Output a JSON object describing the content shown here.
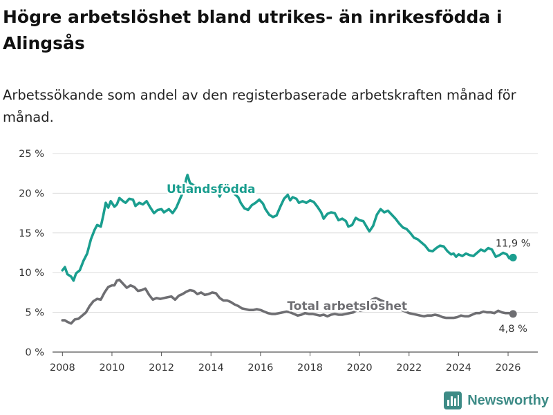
{
  "title": "Högre arbetslöshet bland utrikes- än inrikesfödda i Alingsås",
  "subtitle": "Arbetssökande som andel av den registerbaserade arbetskraften månad för månad.",
  "brand": {
    "name": "Newsworthy",
    "icon": "bar-chart-logo-icon",
    "color": "#3d8b86"
  },
  "chart_data": {
    "type": "line",
    "title": "Högre arbetslöshet bland utrikes- än inrikesfödda i Alingsås",
    "xlabel": "",
    "ylabel": "",
    "xlim": [
      2007.6,
      2027.2
    ],
    "ylim": [
      0,
      25
    ],
    "x_ticks": [
      2008,
      2010,
      2012,
      2014,
      2016,
      2018,
      2020,
      2022,
      2024,
      2026
    ],
    "x_tick_labels": [
      "2008",
      "2010",
      "2012",
      "2014",
      "2016",
      "2018",
      "2020",
      "2022",
      "2024",
      "2026"
    ],
    "y_ticks": [
      0,
      5,
      10,
      15,
      20,
      25
    ],
    "y_tick_labels": [
      "0 %",
      "5 %",
      "10 %",
      "15 %",
      "20 %",
      "25 %"
    ],
    "grid": true,
    "series": [
      {
        "name": "Utlandsfödda",
        "label": "Utlandsfödda",
        "color": "#1a9e8f",
        "end_label": "11,9 %",
        "points": [
          [
            2008.0,
            10.3
          ],
          [
            2008.1,
            10.7
          ],
          [
            2008.2,
            9.8
          ],
          [
            2008.35,
            9.5
          ],
          [
            2008.45,
            9.0
          ],
          [
            2008.55,
            9.9
          ],
          [
            2008.7,
            10.3
          ],
          [
            2008.85,
            11.5
          ],
          [
            2009.0,
            12.4
          ],
          [
            2009.15,
            14.2
          ],
          [
            2009.3,
            15.4
          ],
          [
            2009.4,
            16.0
          ],
          [
            2009.55,
            15.8
          ],
          [
            2009.65,
            17.2
          ],
          [
            2009.75,
            18.8
          ],
          [
            2009.85,
            18.2
          ],
          [
            2009.95,
            19.0
          ],
          [
            2010.1,
            18.3
          ],
          [
            2010.2,
            18.6
          ],
          [
            2010.3,
            19.4
          ],
          [
            2010.45,
            19.0
          ],
          [
            2010.55,
            18.8
          ],
          [
            2010.7,
            19.3
          ],
          [
            2010.85,
            19.2
          ],
          [
            2010.95,
            18.4
          ],
          [
            2011.1,
            18.8
          ],
          [
            2011.25,
            18.6
          ],
          [
            2011.4,
            19.0
          ],
          [
            2011.55,
            18.2
          ],
          [
            2011.7,
            17.5
          ],
          [
            2011.85,
            17.9
          ],
          [
            2012.0,
            18.0
          ],
          [
            2012.1,
            17.6
          ],
          [
            2012.3,
            18.0
          ],
          [
            2012.45,
            17.5
          ],
          [
            2012.6,
            18.2
          ],
          [
            2012.75,
            19.3
          ],
          [
            2012.85,
            20.0
          ],
          [
            2012.95,
            21.0
          ],
          [
            2013.0,
            21.8
          ],
          [
            2013.05,
            22.3
          ],
          [
            2013.15,
            21.3
          ],
          [
            2013.3,
            21.0
          ],
          [
            2013.5,
            20.8
          ],
          [
            2013.7,
            20.5
          ],
          [
            2013.9,
            20.3
          ],
          [
            2014.1,
            20.2
          ],
          [
            2014.25,
            20.5
          ],
          [
            2014.35,
            19.6
          ],
          [
            2014.5,
            20.6
          ],
          [
            2014.65,
            20.8
          ],
          [
            2014.8,
            20.3
          ],
          [
            2014.95,
            19.9
          ],
          [
            2015.1,
            19.5
          ],
          [
            2015.2,
            18.8
          ],
          [
            2015.35,
            18.1
          ],
          [
            2015.5,
            17.9
          ],
          [
            2015.65,
            18.5
          ],
          [
            2015.8,
            18.8
          ],
          [
            2015.95,
            19.2
          ],
          [
            2016.1,
            18.7
          ],
          [
            2016.2,
            18.0
          ],
          [
            2016.35,
            17.3
          ],
          [
            2016.5,
            17.0
          ],
          [
            2016.65,
            17.2
          ],
          [
            2016.8,
            18.3
          ],
          [
            2016.95,
            19.3
          ],
          [
            2017.1,
            19.8
          ],
          [
            2017.2,
            19.1
          ],
          [
            2017.3,
            19.5
          ],
          [
            2017.45,
            19.3
          ],
          [
            2017.55,
            18.8
          ],
          [
            2017.7,
            19.0
          ],
          [
            2017.85,
            18.8
          ],
          [
            2018.0,
            19.1
          ],
          [
            2018.15,
            18.9
          ],
          [
            2018.3,
            18.3
          ],
          [
            2018.45,
            17.6
          ],
          [
            2018.55,
            16.8
          ],
          [
            2018.7,
            17.4
          ],
          [
            2018.85,
            17.6
          ],
          [
            2019.0,
            17.5
          ],
          [
            2019.15,
            16.6
          ],
          [
            2019.3,
            16.8
          ],
          [
            2019.45,
            16.5
          ],
          [
            2019.55,
            15.8
          ],
          [
            2019.7,
            16.0
          ],
          [
            2019.85,
            16.9
          ],
          [
            2020.0,
            16.6
          ],
          [
            2020.15,
            16.5
          ],
          [
            2020.3,
            15.7
          ],
          [
            2020.4,
            15.2
          ],
          [
            2020.55,
            15.9
          ],
          [
            2020.7,
            17.3
          ],
          [
            2020.85,
            18.0
          ],
          [
            2021.0,
            17.6
          ],
          [
            2021.15,
            17.8
          ],
          [
            2021.3,
            17.3
          ],
          [
            2021.45,
            16.8
          ],
          [
            2021.6,
            16.2
          ],
          [
            2021.75,
            15.7
          ],
          [
            2021.9,
            15.5
          ],
          [
            2022.05,
            15.0
          ],
          [
            2022.2,
            14.4
          ],
          [
            2022.35,
            14.2
          ],
          [
            2022.5,
            13.8
          ],
          [
            2022.65,
            13.4
          ],
          [
            2022.8,
            12.8
          ],
          [
            2022.95,
            12.7
          ],
          [
            2023.1,
            13.1
          ],
          [
            2023.25,
            13.4
          ],
          [
            2023.4,
            13.3
          ],
          [
            2023.55,
            12.7
          ],
          [
            2023.7,
            12.3
          ],
          [
            2023.8,
            12.4
          ],
          [
            2023.9,
            12.0
          ],
          [
            2024.0,
            12.3
          ],
          [
            2024.15,
            12.1
          ],
          [
            2024.3,
            12.4
          ],
          [
            2024.45,
            12.2
          ],
          [
            2024.6,
            12.1
          ],
          [
            2024.75,
            12.5
          ],
          [
            2024.9,
            12.9
          ],
          [
            2025.05,
            12.7
          ],
          [
            2025.2,
            13.1
          ],
          [
            2025.35,
            12.9
          ],
          [
            2025.5,
            12.0
          ],
          [
            2025.65,
            12.2
          ],
          [
            2025.8,
            12.5
          ],
          [
            2025.95,
            12.3
          ],
          [
            2026.05,
            11.8
          ],
          [
            2026.2,
            11.9
          ]
        ]
      },
      {
        "name": "Total arbetslöshet",
        "label": "Total arbetslöshet",
        "color": "#6e6e72",
        "end_label": "4,8 %",
        "points": [
          [
            2008.0,
            4.0
          ],
          [
            2008.1,
            4.0
          ],
          [
            2008.2,
            3.8
          ],
          [
            2008.35,
            3.6
          ],
          [
            2008.5,
            4.1
          ],
          [
            2008.65,
            4.2
          ],
          [
            2008.8,
            4.6
          ],
          [
            2008.95,
            5.0
          ],
          [
            2009.1,
            5.8
          ],
          [
            2009.25,
            6.4
          ],
          [
            2009.4,
            6.7
          ],
          [
            2009.55,
            6.6
          ],
          [
            2009.7,
            7.5
          ],
          [
            2009.85,
            8.2
          ],
          [
            2010.0,
            8.4
          ],
          [
            2010.1,
            8.4
          ],
          [
            2010.2,
            9.0
          ],
          [
            2010.3,
            9.1
          ],
          [
            2010.45,
            8.6
          ],
          [
            2010.6,
            8.1
          ],
          [
            2010.75,
            8.4
          ],
          [
            2010.9,
            8.2
          ],
          [
            2011.05,
            7.7
          ],
          [
            2011.2,
            7.8
          ],
          [
            2011.35,
            8.0
          ],
          [
            2011.5,
            7.2
          ],
          [
            2011.65,
            6.6
          ],
          [
            2011.8,
            6.8
          ],
          [
            2011.95,
            6.7
          ],
          [
            2012.1,
            6.8
          ],
          [
            2012.25,
            6.9
          ],
          [
            2012.4,
            7.0
          ],
          [
            2012.55,
            6.6
          ],
          [
            2012.7,
            7.1
          ],
          [
            2012.85,
            7.3
          ],
          [
            2013.0,
            7.6
          ],
          [
            2013.15,
            7.8
          ],
          [
            2013.3,
            7.7
          ],
          [
            2013.45,
            7.3
          ],
          [
            2013.6,
            7.5
          ],
          [
            2013.75,
            7.2
          ],
          [
            2013.9,
            7.3
          ],
          [
            2014.05,
            7.5
          ],
          [
            2014.2,
            7.4
          ],
          [
            2014.35,
            6.8
          ],
          [
            2014.5,
            6.5
          ],
          [
            2014.65,
            6.5
          ],
          [
            2014.8,
            6.3
          ],
          [
            2014.95,
            6.0
          ],
          [
            2015.1,
            5.8
          ],
          [
            2015.25,
            5.5
          ],
          [
            2015.4,
            5.4
          ],
          [
            2015.55,
            5.3
          ],
          [
            2015.7,
            5.3
          ],
          [
            2015.85,
            5.4
          ],
          [
            2016.0,
            5.3
          ],
          [
            2016.15,
            5.1
          ],
          [
            2016.3,
            4.9
          ],
          [
            2016.45,
            4.8
          ],
          [
            2016.6,
            4.8
          ],
          [
            2016.75,
            4.9
          ],
          [
            2016.9,
            5.0
          ],
          [
            2017.05,
            5.1
          ],
          [
            2017.2,
            5.0
          ],
          [
            2017.35,
            4.8
          ],
          [
            2017.5,
            4.6
          ],
          [
            2017.65,
            4.7
          ],
          [
            2017.8,
            4.9
          ],
          [
            2017.95,
            4.8
          ],
          [
            2018.1,
            4.8
          ],
          [
            2018.25,
            4.7
          ],
          [
            2018.4,
            4.6
          ],
          [
            2018.55,
            4.7
          ],
          [
            2018.7,
            4.5
          ],
          [
            2018.85,
            4.7
          ],
          [
            2019.0,
            4.8
          ],
          [
            2019.15,
            4.7
          ],
          [
            2019.3,
            4.7
          ],
          [
            2019.45,
            4.8
          ],
          [
            2019.6,
            4.9
          ],
          [
            2019.75,
            5.0
          ],
          [
            2019.9,
            5.3
          ],
          [
            2020.05,
            5.2
          ],
          [
            2020.2,
            5.3
          ],
          [
            2020.35,
            5.8
          ],
          [
            2020.5,
            6.6
          ],
          [
            2020.65,
            6.8
          ],
          [
            2020.8,
            6.6
          ],
          [
            2020.95,
            6.4
          ],
          [
            2021.1,
            6.3
          ],
          [
            2021.25,
            6.0
          ],
          [
            2021.4,
            5.8
          ],
          [
            2021.55,
            5.5
          ],
          [
            2021.7,
            5.3
          ],
          [
            2021.85,
            5.1
          ],
          [
            2022.0,
            4.9
          ],
          [
            2022.15,
            4.8
          ],
          [
            2022.3,
            4.7
          ],
          [
            2022.45,
            4.6
          ],
          [
            2022.6,
            4.5
          ],
          [
            2022.75,
            4.6
          ],
          [
            2022.9,
            4.6
          ],
          [
            2023.05,
            4.7
          ],
          [
            2023.2,
            4.6
          ],
          [
            2023.35,
            4.4
          ],
          [
            2023.5,
            4.3
          ],
          [
            2023.65,
            4.3
          ],
          [
            2023.8,
            4.3
          ],
          [
            2023.95,
            4.4
          ],
          [
            2024.1,
            4.6
          ],
          [
            2024.25,
            4.5
          ],
          [
            2024.4,
            4.5
          ],
          [
            2024.55,
            4.7
          ],
          [
            2024.7,
            4.9
          ],
          [
            2024.85,
            4.9
          ],
          [
            2025.0,
            5.1
          ],
          [
            2025.15,
            5.0
          ],
          [
            2025.3,
            5.0
          ],
          [
            2025.45,
            4.9
          ],
          [
            2025.6,
            5.2
          ],
          [
            2025.75,
            5.0
          ],
          [
            2025.9,
            4.9
          ],
          [
            2026.05,
            4.9
          ],
          [
            2026.2,
            4.8
          ]
        ]
      }
    ]
  }
}
